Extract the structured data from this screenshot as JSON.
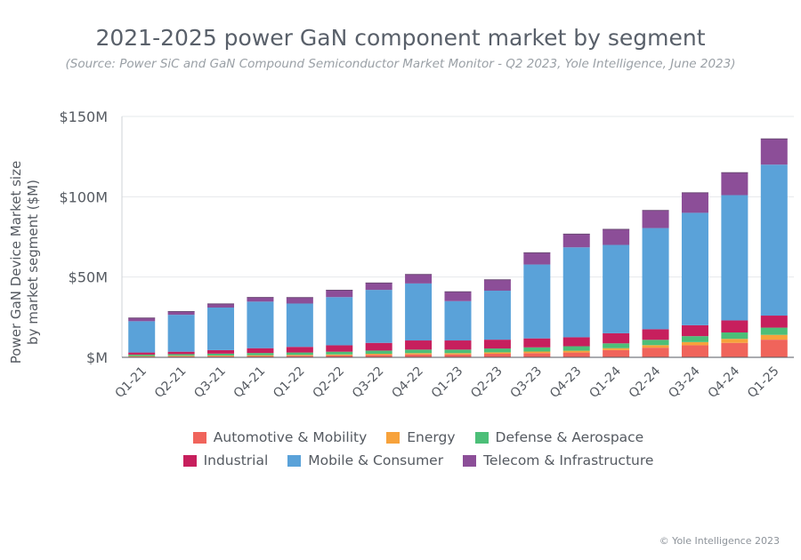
{
  "chart_data": {
    "type": "bar",
    "stacked": true,
    "title": "2021-2025 power GaN component market by segment",
    "subtitle": "(Source: Power SiC and GaN Compound Semiconductor Market Monitor - Q2 2023, Yole Intelligence, June 2023)",
    "ylabel_line1": "Power GaN Device Market size",
    "ylabel_line2": "by market segment ($M)",
    "xlabel": "",
    "ylim": [
      0,
      150
    ],
    "yticks": [
      0,
      50,
      100,
      150
    ],
    "ytick_labels": [
      "$M",
      "$50M",
      "$100M",
      "$150M"
    ],
    "grid": true,
    "legend_position": "bottom",
    "categories": [
      "Q1-21",
      "Q2-21",
      "Q3-21",
      "Q4-21",
      "Q1-22",
      "Q2-22",
      "Q3-22",
      "Q4-22",
      "Q1-23",
      "Q2-23",
      "Q3-23",
      "Q4-23",
      "Q1-24",
      "Q2-24",
      "Q3-24",
      "Q4-24",
      "Q1-25"
    ],
    "series": [
      {
        "name": "Automotive & Mobility",
        "color": "#f0645b",
        "values": [
          0.5,
          0.6,
          0.7,
          0.8,
          1,
          1.2,
          1.5,
          1.8,
          1.8,
          2.2,
          2.6,
          3,
          4.5,
          6,
          7.5,
          9,
          11
        ]
      },
      {
        "name": "Energy",
        "color": "#f7a23b",
        "values": [
          0.3,
          0.4,
          0.4,
          0.5,
          0.5,
          0.6,
          0.7,
          0.8,
          0.8,
          0.9,
          1,
          1.1,
          1.2,
          1.6,
          2,
          2.5,
          3
        ]
      },
      {
        "name": "Defense & Aerospace",
        "color": "#4cbf78",
        "values": [
          0.9,
          1,
          1.2,
          1.4,
          1.5,
          1.7,
          2,
          2.2,
          2.2,
          2.4,
          2.6,
          2.8,
          3,
          3.3,
          3.7,
          4,
          4.5
        ]
      },
      {
        "name": "Industrial",
        "color": "#c71f5d",
        "values": [
          1.3,
          1.5,
          2.2,
          3,
          3.5,
          4,
          4.8,
          5.7,
          5.7,
          5.5,
          5.6,
          5.6,
          6.3,
          6.6,
          6.8,
          7.5,
          7.5
        ]
      },
      {
        "name": "Mobile & Consumer",
        "color": "#5aa2d9",
        "values": [
          19.5,
          23,
          26.5,
          29,
          27,
          30,
          33,
          35.5,
          24.5,
          30.5,
          46,
          56,
          55,
          63,
          70,
          78,
          94
        ]
      },
      {
        "name": "Telecom & Infrastructure",
        "color": "#8c4e98",
        "values": [
          2,
          2,
          2.3,
          2.6,
          3.7,
          4.3,
          4.3,
          5.6,
          5.8,
          6.8,
          7.3,
          8.2,
          9.7,
          11,
          12.5,
          14,
          16
        ]
      }
    ]
  },
  "legend": {
    "row1": [
      "Automotive & Mobility",
      "Energy",
      "Defense & Aerospace"
    ],
    "row2": [
      "Industrial",
      "Mobile & Consumer",
      "Telecom & Infrastructure"
    ]
  },
  "colors": {
    "Automotive & Mobility": "#f0645b",
    "Energy": "#f7a23b",
    "Defense & Aerospace": "#4cbf78",
    "Industrial": "#c71f5d",
    "Mobile & Consumer": "#5aa2d9",
    "Telecom & Infrastructure": "#8c4e98"
  },
  "credit": "© Yole Intelligence 2023"
}
